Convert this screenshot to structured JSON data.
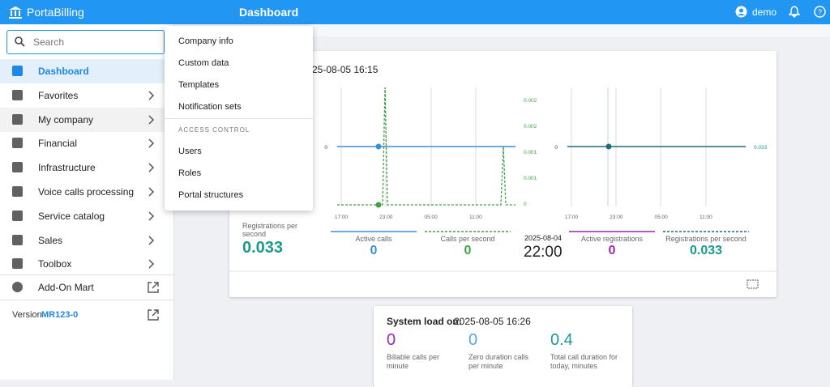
{
  "header": {
    "brand": "PortaBilling",
    "title": "Dashboard",
    "user": "demo"
  },
  "sidebar": {
    "search_placeholder": "Search",
    "items": [
      "Dashboard",
      "Favorites",
      "My company",
      "Financial",
      "Infrastructure",
      "Voice calls processing",
      "Service catalog",
      "Sales",
      "Toolbox"
    ],
    "addon": "Add-On Mart",
    "version_label": "Version",
    "version": "MR123-0"
  },
  "dropdown": {
    "items": [
      "Company info",
      "Custom data",
      "Templates",
      "Notification sets"
    ],
    "section": "ACCESS CONTROL",
    "section_items": [
      "Users",
      "Roles",
      "Portal structures"
    ]
  },
  "panel": {
    "title_visible": "25-08-05 16:15",
    "chart1": {
      "y_ticks": [
        "0"
      ],
      "y2_ticks": [
        "0.002",
        "0.002",
        "0.001",
        "0.001",
        "0"
      ],
      "x_ticks": [
        "17:00",
        "23:00",
        "05:00",
        "11:00"
      ]
    },
    "chart2": {
      "y_ticks": [
        "0"
      ],
      "y2_ticks": [
        "0.033"
      ],
      "x_ticks": [
        "17:00",
        "23:00",
        "05:00",
        "11:00"
      ]
    },
    "main_stat": {
      "label": "Registrations per second",
      "value": "0.033"
    },
    "stats": [
      {
        "label": "Active calls",
        "value": "0"
      },
      {
        "label": "Calls per second",
        "value": "0"
      },
      {
        "label": "Active registrations",
        "value": "0"
      },
      {
        "label": "Registrations per second",
        "value": "0.033"
      }
    ],
    "time": {
      "date": "2025-08-04",
      "time": "22:00"
    }
  },
  "system_load": {
    "label": "System load on:",
    "date": "2025-08-05 16:26",
    "stats": [
      {
        "value": "0",
        "label": "Billable calls per minute"
      },
      {
        "value": "0",
        "label": "Zero duration calls per minute"
      },
      {
        "value": "0.4",
        "label": "Total call duration for today, minutes"
      }
    ]
  }
}
